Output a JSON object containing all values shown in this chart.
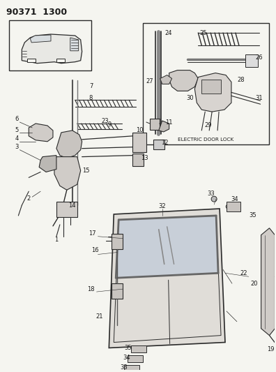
{
  "title": "90371  1300",
  "bg_color": "#f5f5f0",
  "electric_door_lock_label": "ELECTRIC DOOR LOCK",
  "title_fs": 9,
  "label_fs": 6.0,
  "fig_w": 3.96,
  "fig_h": 5.33,
  "dpi": 100,
  "line_color": "#2a2a2a",
  "text_color": "#1a1a1a"
}
